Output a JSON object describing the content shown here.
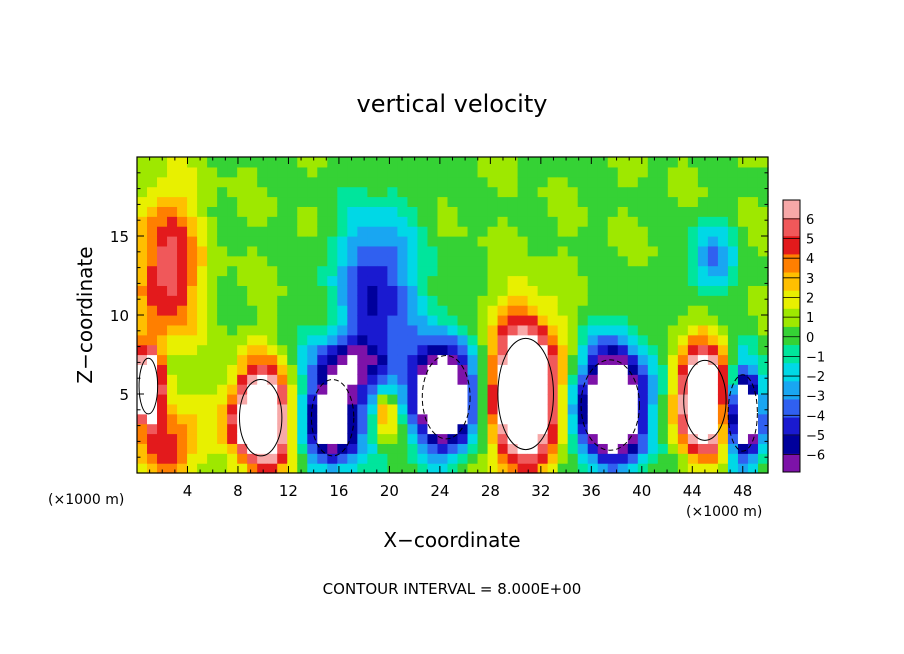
{
  "chart_data": {
    "type": "heatmap",
    "title": "vertical velocity",
    "xlabel": "X−coordinate",
    "ylabel": "Z−coordinate",
    "x_unit_left": "(×1000 m)",
    "x_unit_right": "(×1000 m)",
    "footer": "CONTOUR INTERVAL = 8.000E+00",
    "xlim": [
      0,
      50
    ],
    "ylim": [
      0,
      20
    ],
    "x_ticks": [
      4,
      8,
      12,
      16,
      20,
      24,
      28,
      32,
      36,
      40,
      44,
      48
    ],
    "y_ticks": [
      5,
      10,
      15
    ],
    "colorbar": {
      "ticks": [
        "6",
        "5",
        "4",
        "3",
        "2",
        "1",
        "0",
        "−1",
        "−2",
        "−3",
        "−4",
        "−5",
        "−6"
      ],
      "colors": [
        "#f7a8a8",
        "#f0585a",
        "#e31a1c",
        "#ff7f00",
        "#ffbf00",
        "#e8f000",
        "#9ee800",
        "#35d235",
        "#00e59c",
        "#00d8e6",
        "#19a6f2",
        "#3060f0",
        "#1a1ad0",
        "#00009c",
        "#7d12a8"
      ]
    },
    "features": [
      {
        "kind": "updraft",
        "x": 0.9,
        "z": 5.5,
        "sx": 0.7,
        "sz": 1.6,
        "strength": 1.0
      },
      {
        "kind": "updraft",
        "x": 9.8,
        "z": 3.5,
        "sx": 1.6,
        "sz": 2.2,
        "strength": 1.0
      },
      {
        "kind": "updraft",
        "x": 30.8,
        "z": 5.0,
        "sx": 2.1,
        "sz": 3.2,
        "strength": 1.0
      },
      {
        "kind": "updraft",
        "x": 45.0,
        "z": 4.6,
        "sx": 1.6,
        "sz": 2.3,
        "strength": 1.0
      },
      {
        "kind": "updraft",
        "x": 19.7,
        "z": 3.8,
        "sx": 0.5,
        "sz": 0.9,
        "strength": 0.35
      },
      {
        "kind": "updraft",
        "x": 2.5,
        "z": 13.0,
        "sx": 1.7,
        "sz": 3.5,
        "strength": 0.45
      },
      {
        "kind": "updraft",
        "x": 2.8,
        "z": 2.0,
        "sx": 1.5,
        "sz": 1.5,
        "strength": 0.4
      },
      {
        "kind": "downdraft",
        "x": 15.5,
        "z": 3.5,
        "sx": 1.6,
        "sz": 2.2,
        "strength": 0.8
      },
      {
        "kind": "downdraft",
        "x": 24.5,
        "z": 4.8,
        "sx": 1.8,
        "sz": 2.4,
        "strength": 1.0
      },
      {
        "kind": "downdraft",
        "x": 37.5,
        "z": 4.3,
        "sx": 2.2,
        "sz": 2.6,
        "strength": 1.0
      },
      {
        "kind": "downdraft",
        "x": 48.0,
        "z": 3.8,
        "sx": 1.1,
        "sz": 2.2,
        "strength": 0.95
      },
      {
        "kind": "downdraft",
        "x": 19.0,
        "z": 11.5,
        "sx": 2.3,
        "sz": 3.6,
        "strength": 0.45
      },
      {
        "kind": "downdraft",
        "x": 17.5,
        "z": 7.0,
        "sx": 2.8,
        "sz": 1.2,
        "strength": 0.3
      },
      {
        "kind": "downdraft",
        "x": 45.5,
        "z": 13.5,
        "sx": 1.3,
        "sz": 1.6,
        "strength": 0.3
      }
    ]
  }
}
